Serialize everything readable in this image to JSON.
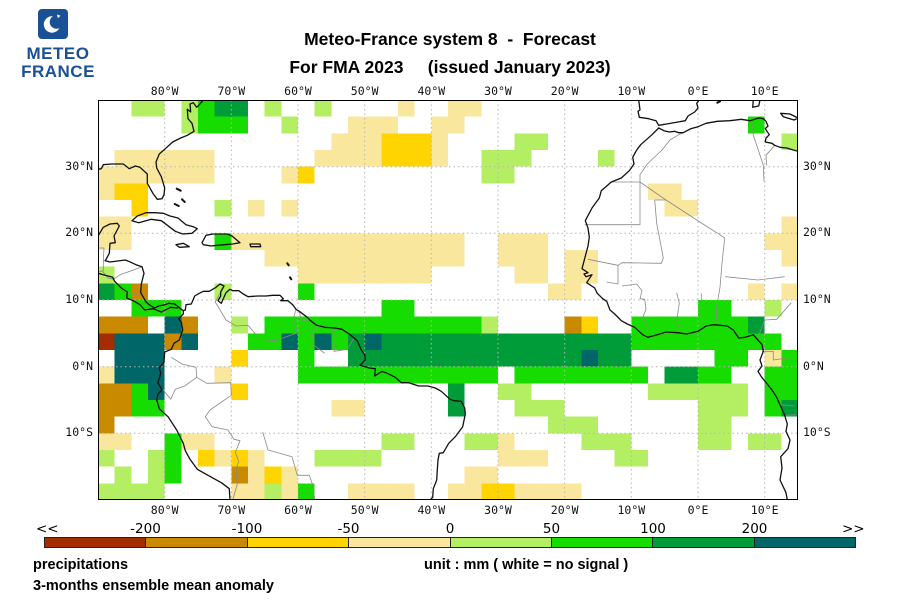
{
  "logo": {
    "line1": "METEO",
    "line2": "FRANCE",
    "brand_color": "#1A5096"
  },
  "header": {
    "title_line1": "Meteo-France system 8  -  Forecast",
    "title_line2": "For FMA 2023     (issued January 2023)"
  },
  "map": {
    "lon_labels": [
      "80°W",
      "70°W",
      "60°W",
      "50°W",
      "40°W",
      "30°W",
      "20°W",
      "10°W",
      "0°E",
      "10°E"
    ],
    "lat_labels": [
      "30°N",
      "20°N",
      "10°N",
      "0°N",
      "10°S"
    ]
  },
  "colorbar": {
    "left_arrow": "<<",
    "right_arrow": ">>",
    "tick_labels": [
      "-200",
      "-100",
      "-50",
      "0",
      "50",
      "100",
      "200"
    ]
  },
  "footer": {
    "line1": "precipitations",
    "line2": "3-months ensemble mean anomaly",
    "unit_text": "unit : mm  ( white = no signal )"
  },
  "chart_data": {
    "type": "heatmap",
    "title": "Meteo-France system 8 - Forecast precipitation anomaly, FMA 2023 (issued January 2023)",
    "unit": "mm",
    "note": "white = no signal",
    "lon_range": [
      -90,
      15
    ],
    "lat_range": [
      -20,
      40
    ],
    "cell_size_deg": 2.5,
    "grid_cols": 42,
    "grid_rows": 24,
    "palette": [
      {
        "range": "< -200",
        "color": "#A32C00"
      },
      {
        "range": "-200 to -100",
        "color": "#C98A00"
      },
      {
        "range": "-100 to -50",
        "color": "#FFD400"
      },
      {
        "range": "-50 to 0",
        "color": "#F8E79C"
      },
      {
        "range": "0 to 50",
        "color": "#B4EE63"
      },
      {
        "range": "50 to 100",
        "color": "#17DC00"
      },
      {
        "range": "100 to 200",
        "color": "#009C3A"
      },
      {
        "range": "> 200",
        "color": "#006667"
      }
    ],
    "cells": [
      [
        15,
        1,
        3,
        1,
        3
      ],
      [
        14,
        2,
        7,
        2,
        3
      ],
      [
        18,
        0,
        1,
        1,
        3
      ],
      [
        21,
        0,
        2,
        1,
        3
      ],
      [
        20,
        1,
        2,
        1,
        3
      ],
      [
        19,
        2,
        1,
        1,
        3
      ],
      [
        1,
        3,
        5,
        2,
        3
      ],
      [
        0,
        4,
        2,
        2,
        3
      ],
      [
        5,
        4,
        2,
        1,
        3
      ],
      [
        6,
        3,
        1,
        1,
        3
      ],
      [
        13,
        3,
        2,
        1,
        3
      ],
      [
        11,
        4,
        2,
        1,
        3
      ],
      [
        0,
        7,
        2,
        2,
        3
      ],
      [
        9,
        6,
        1,
        1,
        3
      ],
      [
        11,
        6,
        1,
        1,
        3
      ],
      [
        8,
        8,
        3,
        1,
        3
      ],
      [
        10,
        8,
        12,
        2,
        3
      ],
      [
        12,
        10,
        8,
        1,
        3
      ],
      [
        24,
        8,
        3,
        2,
        3
      ],
      [
        25,
        10,
        2,
        1,
        3
      ],
      [
        28,
        9,
        2,
        2,
        3
      ],
      [
        27,
        11,
        2,
        1,
        3
      ],
      [
        33,
        5,
        2,
        1,
        3
      ],
      [
        34,
        6,
        2,
        1,
        3
      ],
      [
        41,
        7,
        1,
        3,
        3
      ],
      [
        40,
        8,
        1,
        1,
        3
      ],
      [
        39,
        11,
        1,
        1,
        3
      ],
      [
        41,
        11,
        1,
        1,
        3
      ],
      [
        40,
        15,
        2,
        1,
        3
      ],
      [
        0,
        16,
        2,
        1,
        3
      ],
      [
        2,
        16,
        1,
        2,
        3
      ],
      [
        0,
        20,
        2,
        1,
        3
      ],
      [
        5,
        20,
        2,
        1,
        3
      ],
      [
        6,
        21,
        4,
        1,
        3
      ],
      [
        8,
        22,
        4,
        2,
        3
      ],
      [
        7,
        16,
        1,
        1,
        3
      ],
      [
        14,
        18,
        2,
        1,
        3
      ],
      [
        23,
        20,
        2,
        1,
        3
      ],
      [
        24,
        21,
        3,
        1,
        3
      ],
      [
        22,
        22,
        2,
        1,
        3
      ],
      [
        21,
        23,
        2,
        1,
        3
      ],
      [
        25,
        23,
        4,
        1,
        3
      ],
      [
        15,
        23,
        4,
        1,
        3
      ],
      [
        17,
        2,
        3,
        2,
        2
      ],
      [
        12,
        4,
        1,
        1,
        2
      ],
      [
        1,
        5,
        2,
        1,
        2
      ],
      [
        2,
        6,
        1,
        1,
        2
      ],
      [
        28,
        13,
        2,
        1,
        2
      ],
      [
        8,
        15,
        1,
        1,
        2
      ],
      [
        8,
        17,
        1,
        1,
        2
      ],
      [
        6,
        21,
        1,
        1,
        2
      ],
      [
        8,
        21,
        1,
        1,
        2
      ],
      [
        10,
        22,
        1,
        1,
        2
      ],
      [
        23,
        23,
        2,
        1,
        2
      ],
      [
        2,
        0,
        2,
        1,
        4
      ],
      [
        5,
        0,
        1,
        2,
        4
      ],
      [
        10,
        0,
        1,
        1,
        4
      ],
      [
        11,
        1,
        1,
        1,
        4
      ],
      [
        13,
        0,
        1,
        1,
        4
      ],
      [
        25,
        2,
        2,
        1,
        4
      ],
      [
        23,
        3,
        3,
        1,
        4
      ],
      [
        23,
        4,
        2,
        1,
        4
      ],
      [
        30,
        3,
        1,
        1,
        4
      ],
      [
        41,
        2,
        1,
        1,
        4
      ],
      [
        7,
        6,
        1,
        1,
        4
      ],
      [
        0,
        10,
        1,
        1,
        4
      ],
      [
        7,
        11,
        1,
        1,
        4
      ],
      [
        8,
        13,
        1,
        1,
        4
      ],
      [
        22,
        13,
        2,
        1,
        4
      ],
      [
        40,
        12,
        1,
        1,
        4
      ],
      [
        33,
        17,
        3,
        1,
        4
      ],
      [
        36,
        17,
        3,
        2,
        4
      ],
      [
        36,
        19,
        2,
        2,
        4
      ],
      [
        39,
        20,
        2,
        1,
        4
      ],
      [
        24,
        17,
        2,
        1,
        4
      ],
      [
        25,
        18,
        3,
        1,
        4
      ],
      [
        27,
        19,
        3,
        1,
        4
      ],
      [
        29,
        20,
        3,
        1,
        4
      ],
      [
        31,
        21,
        2,
        1,
        4
      ],
      [
        21,
        18,
        1,
        1,
        4
      ],
      [
        22,
        20,
        2,
        1,
        4
      ],
      [
        17,
        20,
        2,
        1,
        4
      ],
      [
        15,
        21,
        2,
        1,
        4
      ],
      [
        13,
        21,
        2,
        1,
        4
      ],
      [
        3,
        21,
        1,
        2,
        4
      ],
      [
        0,
        21,
        1,
        1,
        4
      ],
      [
        1,
        22,
        1,
        1,
        4
      ],
      [
        0,
        23,
        2,
        1,
        4
      ],
      [
        2,
        23,
        2,
        1,
        4
      ],
      [
        10,
        23,
        1,
        1,
        4
      ],
      [
        6,
        0,
        3,
        2,
        5
      ],
      [
        39,
        1,
        1,
        1,
        5
      ],
      [
        0,
        11,
        2,
        1,
        5
      ],
      [
        2,
        12,
        3,
        1,
        5
      ],
      [
        12,
        11,
        1,
        1,
        5
      ],
      [
        7,
        8,
        1,
        1,
        5
      ],
      [
        17,
        12,
        2,
        1,
        5
      ],
      [
        10,
        13,
        3,
        2,
        5
      ],
      [
        13,
        13,
        2,
        2,
        5
      ],
      [
        15,
        13,
        6,
        1,
        5
      ],
      [
        21,
        13,
        2,
        1,
        5
      ],
      [
        9,
        14,
        2,
        1,
        5
      ],
      [
        12,
        15,
        1,
        2,
        5
      ],
      [
        13,
        16,
        8,
        1,
        5
      ],
      [
        21,
        16,
        3,
        1,
        5
      ],
      [
        25,
        16,
        8,
        1,
        5
      ],
      [
        32,
        13,
        4,
        2,
        5
      ],
      [
        36,
        12,
        2,
        1,
        5
      ],
      [
        36,
        13,
        4,
        2,
        5
      ],
      [
        37,
        15,
        2,
        1,
        5
      ],
      [
        36,
        16,
        2,
        1,
        5
      ],
      [
        40,
        14,
        1,
        1,
        5
      ],
      [
        41,
        15,
        1,
        4,
        5
      ],
      [
        40,
        16,
        2,
        3,
        5
      ],
      [
        2,
        17,
        2,
        2,
        5
      ],
      [
        4,
        20,
        1,
        3,
        5
      ],
      [
        12,
        23,
        1,
        1,
        5
      ],
      [
        20,
        16,
        2,
        1,
        5
      ],
      [
        7,
        0,
        2,
        1,
        6
      ],
      [
        0,
        11,
        1,
        1,
        6
      ],
      [
        15,
        14,
        6,
        2,
        6
      ],
      [
        21,
        14,
        11,
        2,
        6
      ],
      [
        34,
        16,
        2,
        1,
        6
      ],
      [
        39,
        13,
        1,
        1,
        6
      ],
      [
        41,
        18,
        1,
        1,
        6
      ],
      [
        21,
        17,
        1,
        2,
        6
      ],
      [
        1,
        14,
        3,
        3,
        7
      ],
      [
        4,
        13,
        2,
        2,
        7
      ],
      [
        3,
        16,
        1,
        2,
        7
      ],
      [
        13,
        14,
        1,
        1,
        7
      ],
      [
        16,
        14,
        1,
        1,
        7
      ],
      [
        11,
        14,
        1,
        1,
        7
      ],
      [
        29,
        15,
        1,
        1,
        7
      ],
      [
        0,
        13,
        3,
        1,
        1
      ],
      [
        4,
        14,
        1,
        1,
        1
      ],
      [
        5,
        13,
        1,
        1,
        1
      ],
      [
        0,
        17,
        2,
        2,
        1
      ],
      [
        0,
        19,
        1,
        1,
        1
      ],
      [
        2,
        11,
        1,
        1,
        1
      ],
      [
        28,
        13,
        1,
        1,
        1
      ],
      [
        8,
        22,
        1,
        1,
        1
      ],
      [
        0,
        14,
        1,
        1,
        0
      ]
    ]
  }
}
